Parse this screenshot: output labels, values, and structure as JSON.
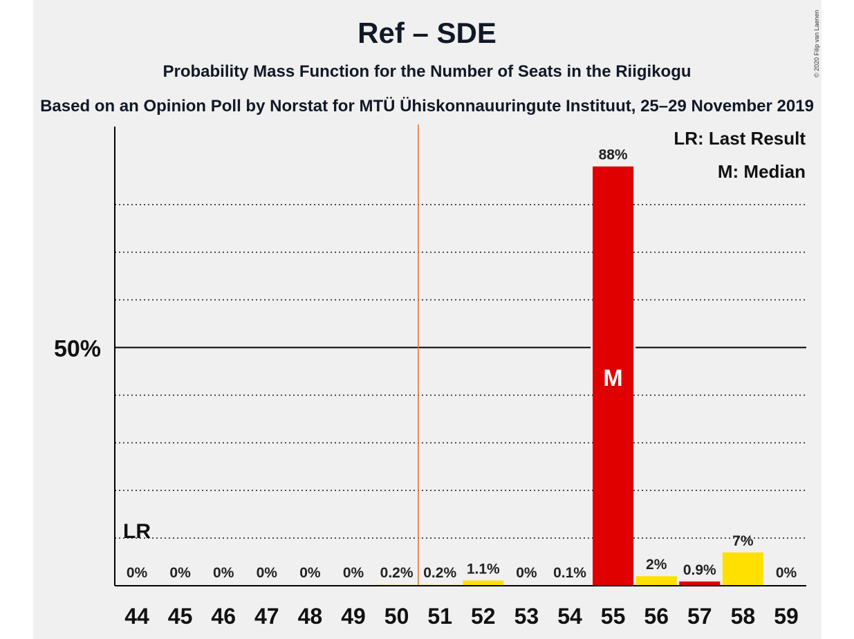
{
  "header": {
    "title": "Ref – SDE",
    "subtitle": "Probability Mass Function for the Number of Seats in the Riigikogu",
    "subtitle2": "Based on an Opinion Poll by Norstat for MTÜ Ühiskonnauuringute Instituut, 25–29 November 2019",
    "copyright": "© 2020 Filip van Laenen"
  },
  "legend": {
    "last_result": "LR: Last Result",
    "median": "M: Median"
  },
  "chart_data": {
    "type": "bar",
    "categories": [
      "44",
      "45",
      "46",
      "47",
      "48",
      "49",
      "50",
      "51",
      "52",
      "53",
      "54",
      "55",
      "56",
      "57",
      "58",
      "59"
    ],
    "values": [
      0,
      0,
      0,
      0,
      0,
      0,
      0.2,
      0.2,
      1.1,
      0,
      0.1,
      88,
      2,
      0.9,
      7,
      0
    ],
    "data_labels": [
      "0%",
      "0%",
      "0%",
      "0%",
      "0%",
      "0%",
      "0.2%",
      "0.2%",
      "1.1%",
      "0%",
      "0.1%",
      "88%",
      "2%",
      "0.9%",
      "7%",
      "0%"
    ],
    "bar_colors": [
      "#ffe000",
      "#ffe000",
      "#ffe000",
      "#ffe000",
      "#ffe000",
      "#ffe000",
      "#ffe000",
      "#ffe000",
      "#ffe000",
      "#ffe000",
      "#e00000",
      "#e00000",
      "#ffe000",
      "#e00000",
      "#ffe000",
      "#ffe000"
    ],
    "ylim": [
      0,
      100
    ],
    "y_tick_label": "50%",
    "y_tick_value": 50,
    "dotted_gridlines": [
      10,
      20,
      30,
      40,
      60,
      70,
      80
    ],
    "majority_line_after": "50",
    "last_result": {
      "seat": "44",
      "label": "LR"
    },
    "median": {
      "seat": "55",
      "label": "M"
    },
    "colors": {
      "red": "#e00000",
      "yellow": "#ffe000",
      "majority": "#e07020",
      "axis": "#000000"
    }
  }
}
